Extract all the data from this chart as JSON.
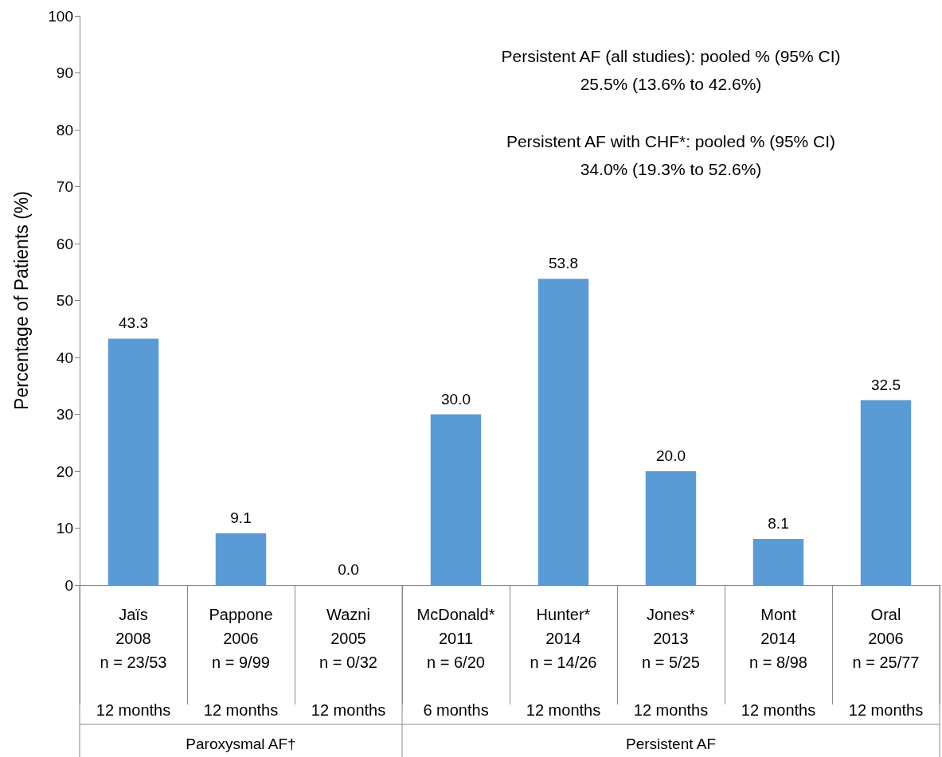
{
  "chart_data": {
    "type": "bar",
    "ylabel": "Percentage of Patients (%)",
    "categories": [
      "Jaïs\n2008\nn = 23/53\n\n12 months",
      "Pappone\n2006\nn = 9/99\n\n12 months",
      "Wazni\n2005\nn = 0/32\n\n12 months",
      "McDonald*\n2011\nn = 6/20\n\n6 months",
      "Hunter*\n2014\nn = 14/26\n\n12 months",
      "Jones*\n2013\nn = 5/25\n\n12 months",
      "Mont\n2014\nn = 8/98\n\n12 months",
      "Oral\n2006\nn = 25/77\n\n12 months"
    ],
    "values": [
      43.3,
      9.1,
      0.0,
      30.0,
      53.8,
      20.0,
      8.1,
      32.5
    ],
    "color": "#5b9bd5",
    "value_labels": [
      "43.3",
      "9.1",
      "0.0",
      "30.0",
      "53.8",
      "20.0",
      "8.1",
      "32.5"
    ],
    "grid": false,
    "ylim": [
      0,
      100
    ],
    "yticks": [
      0,
      10,
      20,
      30,
      40,
      50,
      60,
      70,
      80,
      90,
      100
    ],
    "annotations": [
      "Persistent AF (all studies): pooled % (95% CI)",
      "25.5% (13.6% to 42.6%)",
      "Persistent AF with CHF*: pooled % (95% CI)",
      "34.0% (19.3% to 52.6%)",
      "Paroxysmal AF†",
      "Persistent AF"
    ]
  }
}
